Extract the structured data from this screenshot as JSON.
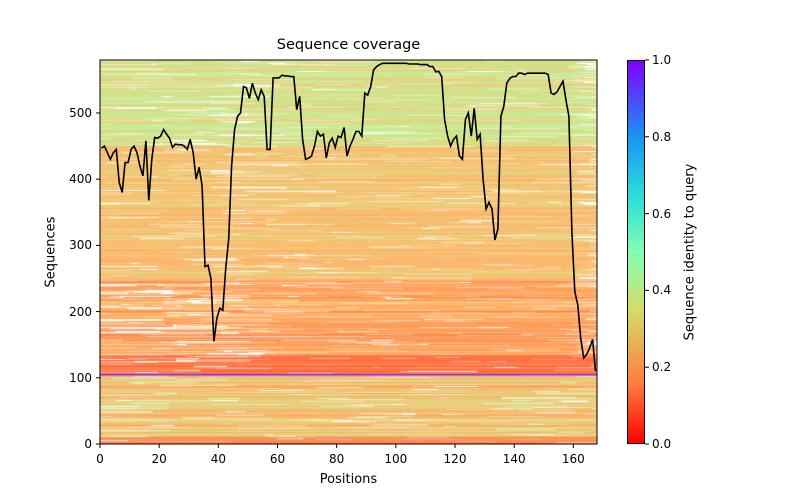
{
  "chart_data": {
    "type": "heatmap",
    "title": "Sequence coverage",
    "xlabel": "Positions",
    "ylabel": "Sequences",
    "xlim": [
      0,
      168
    ],
    "ylim": [
      0,
      580
    ],
    "xticks": [
      "0",
      "20",
      "40",
      "60",
      "80",
      "100",
      "120",
      "140",
      "160"
    ],
    "yticks": [
      "0",
      "100",
      "200",
      "300",
      "400",
      "500"
    ],
    "colorbar": {
      "label": "Sequence identity to query",
      "colormap": "rainbow_r",
      "range": [
        0,
        1
      ],
      "ticks": [
        "0.0",
        "0.2",
        "0.4",
        "0.6",
        "0.8",
        "1.0"
      ]
    },
    "query_row": 105,
    "coverage_line": {
      "name": "coverage",
      "color": "#000000",
      "x_start": 0,
      "values": [
        447,
        450,
        440,
        430,
        440,
        445,
        395,
        380,
        425,
        425,
        445,
        450,
        440,
        420,
        405,
        458,
        368,
        430,
        463,
        462,
        465,
        475,
        468,
        462,
        448,
        453,
        452,
        452,
        450,
        445,
        460,
        440,
        400,
        418,
        390,
        268,
        270,
        250,
        155,
        190,
        205,
        202,
        265,
        310,
        420,
        475,
        495,
        500,
        540,
        538,
        522,
        545,
        530,
        520,
        535,
        525,
        445,
        445,
        553,
        553,
        553,
        557,
        556,
        556,
        555,
        555,
        505,
        525,
        460,
        430,
        432,
        435,
        450,
        472,
        465,
        468,
        432,
        455,
        462,
        448,
        465,
        463,
        478,
        435,
        450,
        460,
        472,
        472,
        465,
        530,
        527,
        540,
        565,
        570,
        573,
        575,
        575,
        575,
        575,
        575,
        575,
        575,
        575,
        575,
        574,
        574,
        574,
        574,
        573,
        573,
        573,
        570,
        570,
        562,
        563,
        555,
        490,
        465,
        450,
        460,
        465,
        435,
        430,
        490,
        500,
        465,
        507,
        460,
        468,
        400,
        355,
        365,
        355,
        308,
        325,
        495,
        510,
        545,
        552,
        555,
        555,
        560,
        560,
        558,
        560,
        560,
        560,
        560,
        560,
        560,
        560,
        558,
        530,
        528,
        532,
        540,
        548,
        520,
        495,
        320,
        230,
        210,
        160,
        130,
        135,
        145,
        158,
        110
      ]
    },
    "heatmap_bands": [
      {
        "rows": [
          0,
          12
        ],
        "identity": [
          0.12,
          0.2
        ]
      },
      {
        "rows": [
          12,
          104
        ],
        "identity": [
          0.2,
          0.36
        ]
      },
      {
        "rows": [
          104,
          106
        ],
        "identity": [
          1.0,
          1.0
        ]
      },
      {
        "rows": [
          106,
          135
        ],
        "identity": [
          0.1,
          0.18
        ]
      },
      {
        "rows": [
          135,
          250
        ],
        "identity": [
          0.16,
          0.27
        ]
      },
      {
        "rows": [
          250,
          450
        ],
        "identity": [
          0.22,
          0.32
        ]
      },
      {
        "rows": [
          450,
          580
        ],
        "identity": [
          0.28,
          0.4
        ]
      }
    ]
  }
}
